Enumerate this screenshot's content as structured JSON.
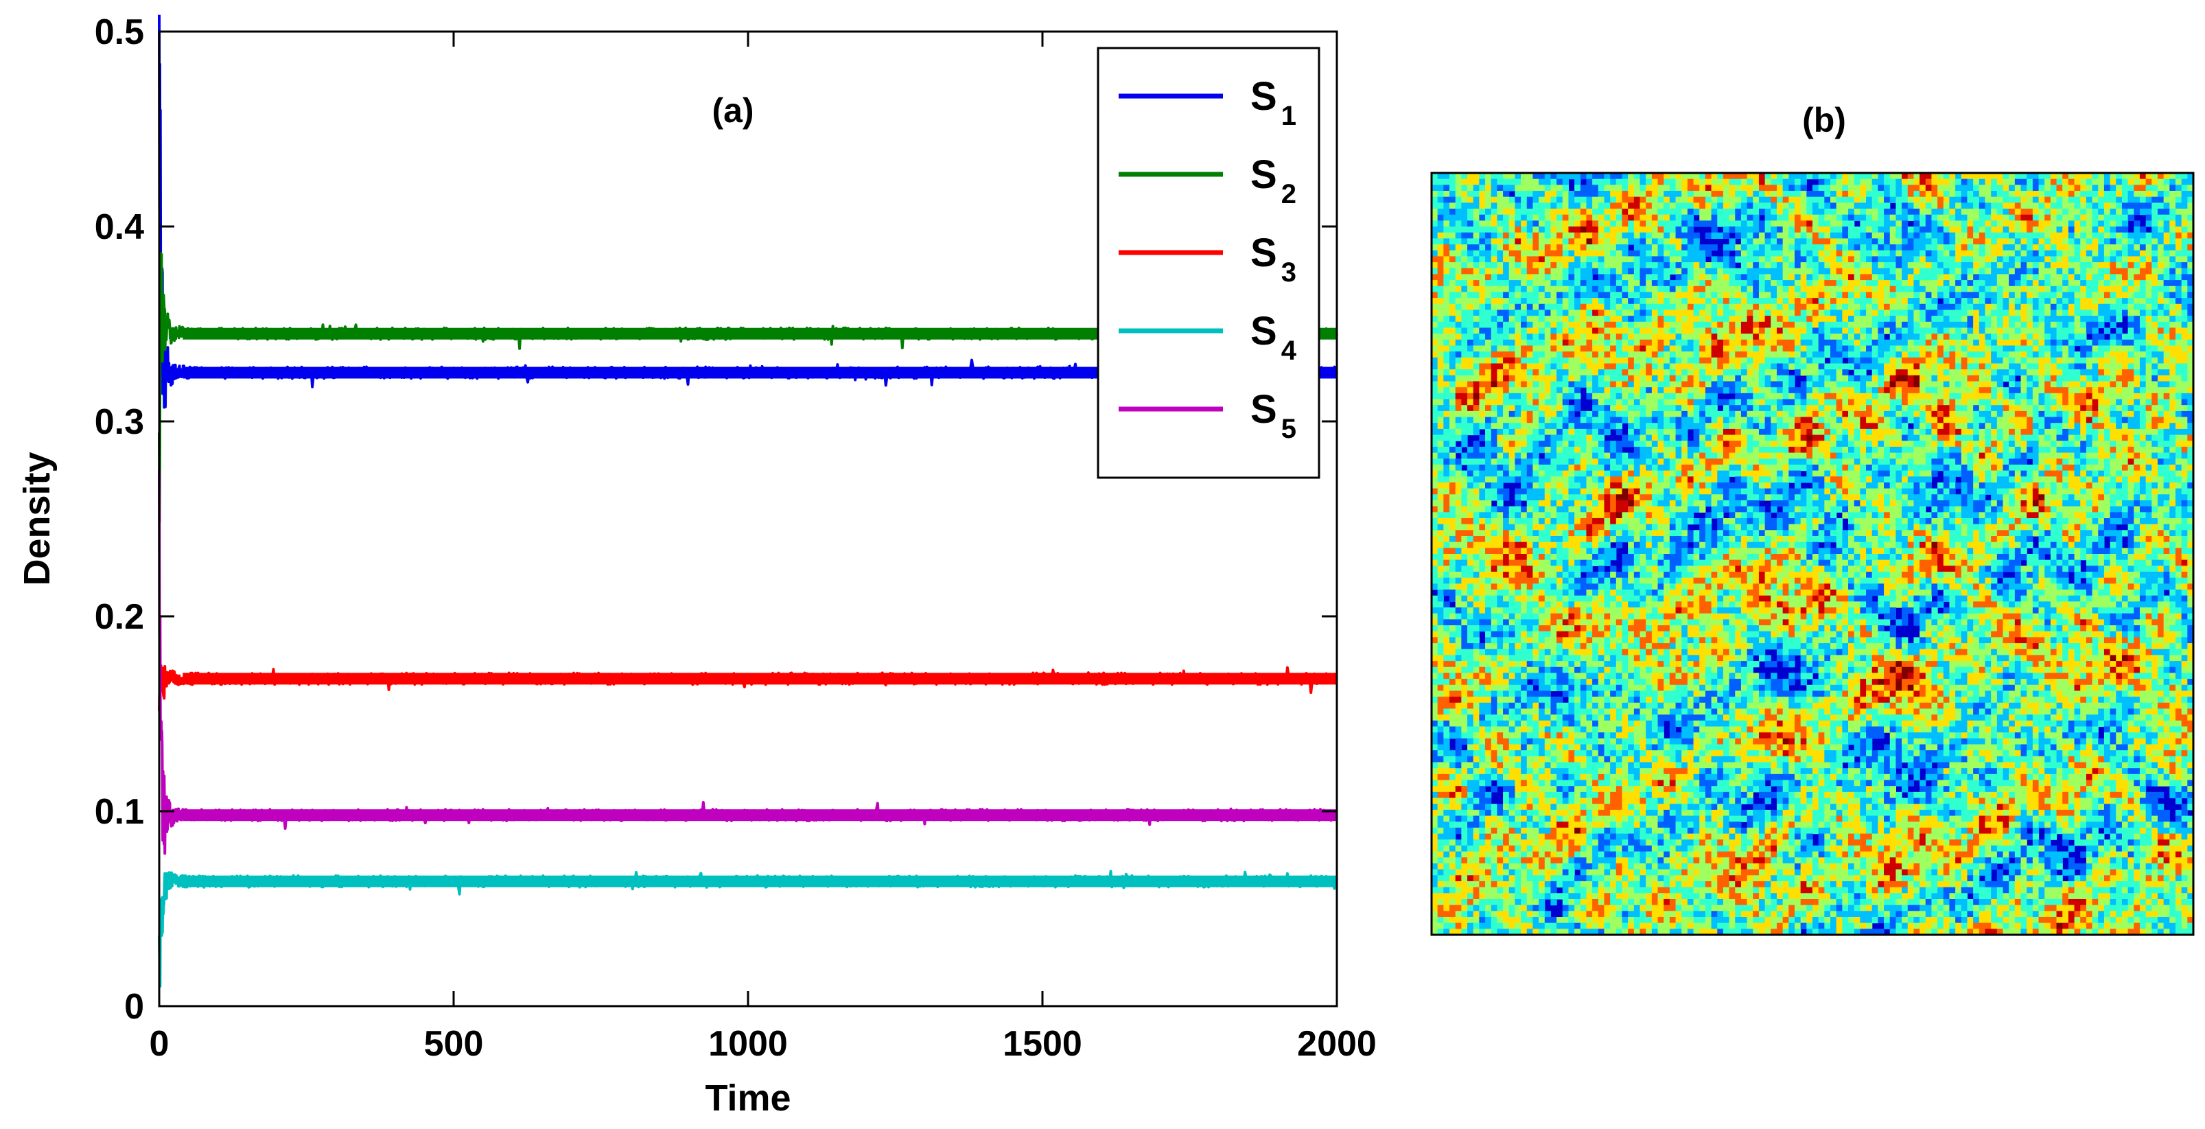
{
  "chart_data": [
    {
      "type": "line",
      "panel_label": "(a)",
      "title": "",
      "xlabel": "Time",
      "ylabel": "Density",
      "xlim": [
        0,
        2000
      ],
      "ylim": [
        0,
        0.5
      ],
      "xticks": [
        0,
        500,
        1000,
        1500,
        2000
      ],
      "xtick_labels": [
        "0",
        "500",
        "1000",
        "1500",
        "2000"
      ],
      "yticks": [
        0,
        0.1,
        0.2,
        0.3,
        0.4,
        0.5
      ],
      "ytick_labels": [
        "0",
        "0.1",
        "0.2",
        "0.3",
        "0.4",
        "0.5"
      ],
      "grid": false,
      "legend_position": "top-right",
      "series": [
        {
          "name": "S1",
          "label_base": "S",
          "label_sub": "1",
          "color": "#0000ee",
          "steady_value": 0.325,
          "fluctuation": 0.003,
          "x": [
            0,
            2,
            4,
            6,
            8,
            10,
            14,
            20,
            30,
            50,
            100,
            500,
            1000,
            1500,
            2000
          ],
          "values": [
            0.47,
            0.42,
            0.38,
            0.345,
            0.33,
            0.322,
            0.33,
            0.323,
            0.326,
            0.325,
            0.325,
            0.325,
            0.325,
            0.325,
            0.325
          ]
        },
        {
          "name": "S2",
          "label_base": "S",
          "label_sub": "2",
          "color": "#007f00",
          "steady_value": 0.345,
          "fluctuation": 0.003,
          "x": [
            0,
            2,
            4,
            6,
            8,
            10,
            14,
            20,
            30,
            50,
            100,
            500,
            1000,
            1500,
            2000
          ],
          "values": [
            0.27,
            0.36,
            0.38,
            0.33,
            0.36,
            0.34,
            0.352,
            0.343,
            0.346,
            0.345,
            0.345,
            0.345,
            0.345,
            0.345,
            0.345
          ]
        },
        {
          "name": "S3",
          "label_base": "S",
          "label_sub": "3",
          "color": "#ff0000",
          "steady_value": 0.168,
          "fluctuation": 0.003,
          "x": [
            0,
            2,
            4,
            6,
            8,
            10,
            14,
            20,
            30,
            50,
            100,
            500,
            1000,
            1500,
            2000
          ],
          "values": [
            0.14,
            0.175,
            0.155,
            0.172,
            0.163,
            0.17,
            0.166,
            0.169,
            0.168,
            0.168,
            0.168,
            0.168,
            0.168,
            0.168,
            0.168
          ]
        },
        {
          "name": "S4",
          "label_base": "S",
          "label_sub": "4",
          "color": "#00bfbf",
          "steady_value": 0.064,
          "fluctuation": 0.003,
          "x": [
            0,
            2,
            4,
            6,
            8,
            10,
            14,
            20,
            30,
            50,
            100,
            500,
            1000,
            1500,
            2000
          ],
          "values": [
            0.015,
            0.035,
            0.045,
            0.052,
            0.057,
            0.06,
            0.063,
            0.065,
            0.064,
            0.064,
            0.064,
            0.064,
            0.064,
            0.064,
            0.064
          ]
        },
        {
          "name": "S5",
          "label_base": "S",
          "label_sub": "5",
          "color": "#bf00bf",
          "steady_value": 0.098,
          "fluctuation": 0.003,
          "x": [
            0,
            2,
            4,
            6,
            8,
            10,
            14,
            20,
            30,
            50,
            100,
            500,
            1000,
            1500,
            2000
          ],
          "values": [
            0.22,
            0.16,
            0.125,
            0.11,
            0.1,
            0.095,
            0.1,
            0.097,
            0.098,
            0.098,
            0.098,
            0.098,
            0.098,
            0.098,
            0.098
          ]
        }
      ]
    },
    {
      "type": "heatmap",
      "panel_label": "(b)",
      "title": "",
      "colormap": "jet",
      "palette": [
        "#00008f",
        "#0000ff",
        "#0060ff",
        "#00bfff",
        "#30ffcf",
        "#9fff60",
        "#ffdf00",
        "#ff6000",
        "#cf0000",
        "#800000"
      ],
      "grid_size": 128,
      "description_values": "spatial pattern of species on a square lattice"
    }
  ]
}
